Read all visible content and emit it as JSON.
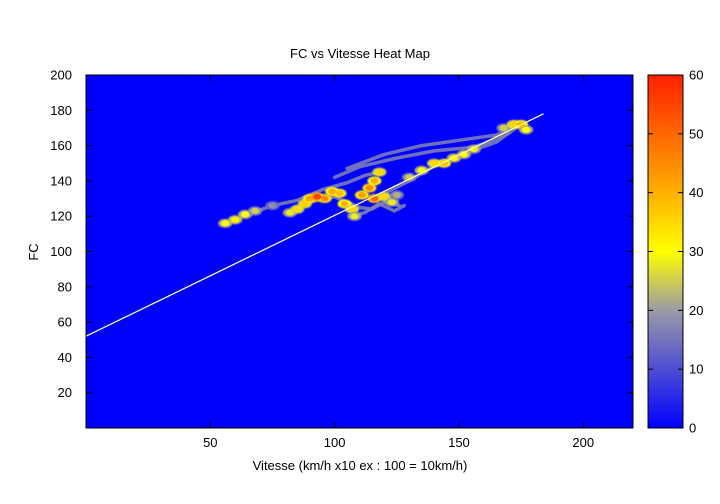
{
  "chart_data": {
    "type": "heatmap",
    "title": "FC vs Vitesse Heat Map",
    "xlabel": "Vitesse (km/h x10 ex : 100 = 10km/h)",
    "ylabel": "FC",
    "xlim": [
      0,
      220
    ],
    "ylim": [
      0,
      200
    ],
    "xticks": [
      50,
      100,
      150,
      200
    ],
    "yticks": [
      20,
      40,
      60,
      80,
      100,
      120,
      140,
      160,
      180,
      200
    ],
    "colorbar": {
      "min": 0,
      "max": 60,
      "ticks": [
        0,
        10,
        20,
        30,
        40,
        50,
        60
      ],
      "colors": [
        "#0000ff",
        "#9999a8",
        "#ffff00",
        "#ffa000",
        "#ff2000"
      ]
    },
    "background_color": "#0000ff",
    "regression_line": {
      "color": "#ffff99",
      "points": [
        [
          0,
          52
        ],
        [
          184,
          178
        ]
      ]
    },
    "hotspots": [
      {
        "x": 56,
        "y": 116,
        "value": 30
      },
      {
        "x": 60,
        "y": 118,
        "value": 32
      },
      {
        "x": 64,
        "y": 121,
        "value": 30
      },
      {
        "x": 68,
        "y": 123,
        "value": 25
      },
      {
        "x": 75,
        "y": 126,
        "value": 18
      },
      {
        "x": 82,
        "y": 122,
        "value": 28
      },
      {
        "x": 85,
        "y": 124,
        "value": 34
      },
      {
        "x": 88,
        "y": 127,
        "value": 36
      },
      {
        "x": 90,
        "y": 130,
        "value": 42
      },
      {
        "x": 93,
        "y": 131,
        "value": 55
      },
      {
        "x": 96,
        "y": 130,
        "value": 45
      },
      {
        "x": 99,
        "y": 134,
        "value": 40
      },
      {
        "x": 102,
        "y": 133,
        "value": 38
      },
      {
        "x": 104,
        "y": 127,
        "value": 40
      },
      {
        "x": 107,
        "y": 124,
        "value": 35
      },
      {
        "x": 108,
        "y": 120,
        "value": 28
      },
      {
        "x": 111,
        "y": 132,
        "value": 42
      },
      {
        "x": 114,
        "y": 136,
        "value": 45
      },
      {
        "x": 116,
        "y": 140,
        "value": 40
      },
      {
        "x": 118,
        "y": 145,
        "value": 35
      },
      {
        "x": 116,
        "y": 130,
        "value": 50
      },
      {
        "x": 120,
        "y": 131,
        "value": 35
      },
      {
        "x": 123,
        "y": 128,
        "value": 28
      },
      {
        "x": 125,
        "y": 132,
        "value": 22
      },
      {
        "x": 130,
        "y": 142,
        "value": 25
      },
      {
        "x": 135,
        "y": 146,
        "value": 30
      },
      {
        "x": 140,
        "y": 150,
        "value": 35
      },
      {
        "x": 144,
        "y": 150,
        "value": 38
      },
      {
        "x": 148,
        "y": 153,
        "value": 32
      },
      {
        "x": 152,
        "y": 155,
        "value": 30
      },
      {
        "x": 156,
        "y": 158,
        "value": 28
      },
      {
        "x": 168,
        "y": 170,
        "value": 25
      },
      {
        "x": 172,
        "y": 172,
        "value": 35
      },
      {
        "x": 175,
        "y": 172,
        "value": 40
      },
      {
        "x": 177,
        "y": 169,
        "value": 30
      }
    ],
    "trails": [
      [
        [
          56,
          116
        ],
        [
          65,
          121
        ],
        [
          75,
          126
        ],
        [
          85,
          129
        ],
        [
          95,
          135
        ],
        [
          105,
          139
        ],
        [
          112,
          143
        ],
        [
          118,
          145
        ]
      ],
      [
        [
          100,
          142
        ],
        [
          110,
          148
        ],
        [
          125,
          153
        ],
        [
          140,
          157
        ],
        [
          155,
          159
        ],
        [
          160,
          161
        ],
        [
          170,
          167
        ]
      ],
      [
        [
          105,
          147
        ],
        [
          120,
          155
        ],
        [
          135,
          160
        ],
        [
          150,
          163
        ],
        [
          165,
          166
        ],
        [
          172,
          170
        ]
      ],
      [
        [
          82,
          122
        ],
        [
          90,
          128
        ],
        [
          100,
          131
        ],
        [
          110,
          125
        ],
        [
          115,
          124
        ],
        [
          120,
          128
        ],
        [
          126,
          126
        ]
      ],
      [
        [
          107,
          120
        ],
        [
          112,
          122
        ],
        [
          118,
          127
        ],
        [
          124,
          123
        ],
        [
          128,
          126
        ]
      ],
      [
        [
          120,
          133
        ],
        [
          130,
          140
        ],
        [
          142,
          150
        ],
        [
          155,
          157
        ],
        [
          165,
          162
        ],
        [
          175,
          172
        ],
        [
          178,
          168
        ]
      ]
    ]
  }
}
